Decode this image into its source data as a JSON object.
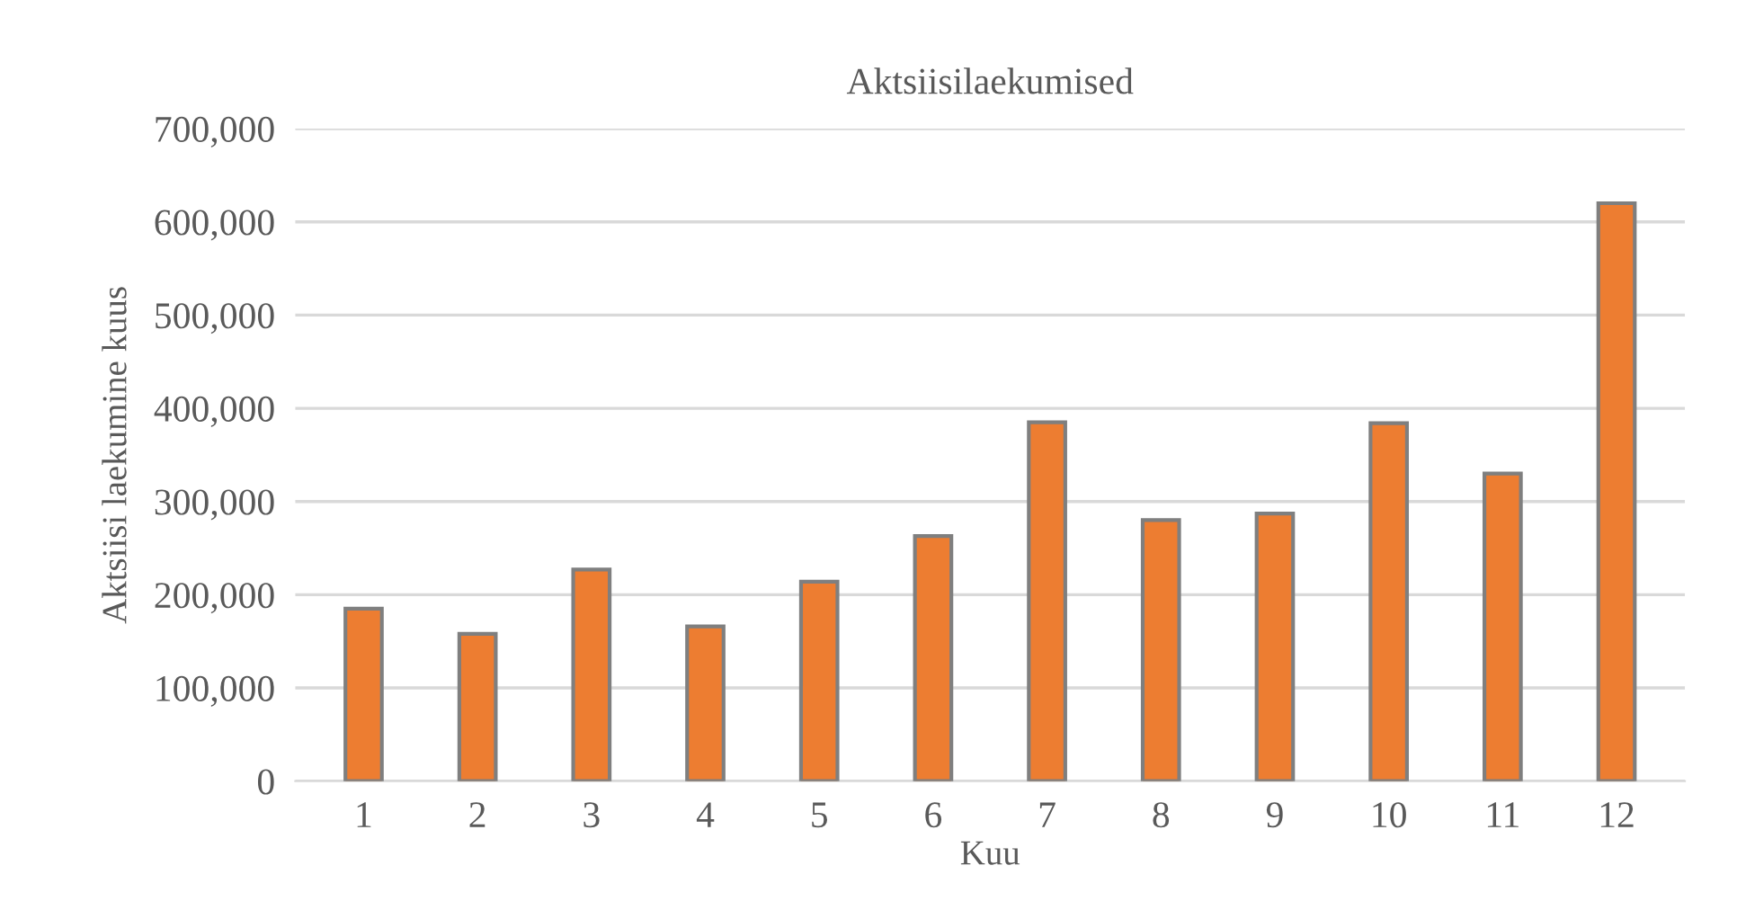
{
  "chart_data": {
    "type": "bar",
    "title": "Aktsiisilaekumised",
    "xlabel": "Kuu",
    "ylabel": "Aktsiisi laekumine kuus",
    "categories": [
      "1",
      "2",
      "3",
      "4",
      "5",
      "6",
      "7",
      "8",
      "9",
      "10",
      "11",
      "12"
    ],
    "values": [
      185000,
      158000,
      227000,
      166000,
      214000,
      263000,
      385000,
      280000,
      287000,
      384000,
      330000,
      620000
    ],
    "color": "#ed7d31",
    "ylim": [
      0,
      700000
    ],
    "yticks": [
      0,
      {
        "value": 100000,
        "label": "100,000"
      },
      {
        "value": 200000,
        "label": "200,000"
      },
      {
        "value": 300000,
        "label": "300,000"
      },
      {
        "value": 400000,
        "label": "400,000"
      },
      {
        "value": 500000,
        "label": "500,000"
      },
      {
        "value": 600000,
        "label": "600,000"
      },
      {
        "value": 700000,
        "label": "700,000"
      }
    ],
    "grid": "y",
    "legend": false
  }
}
